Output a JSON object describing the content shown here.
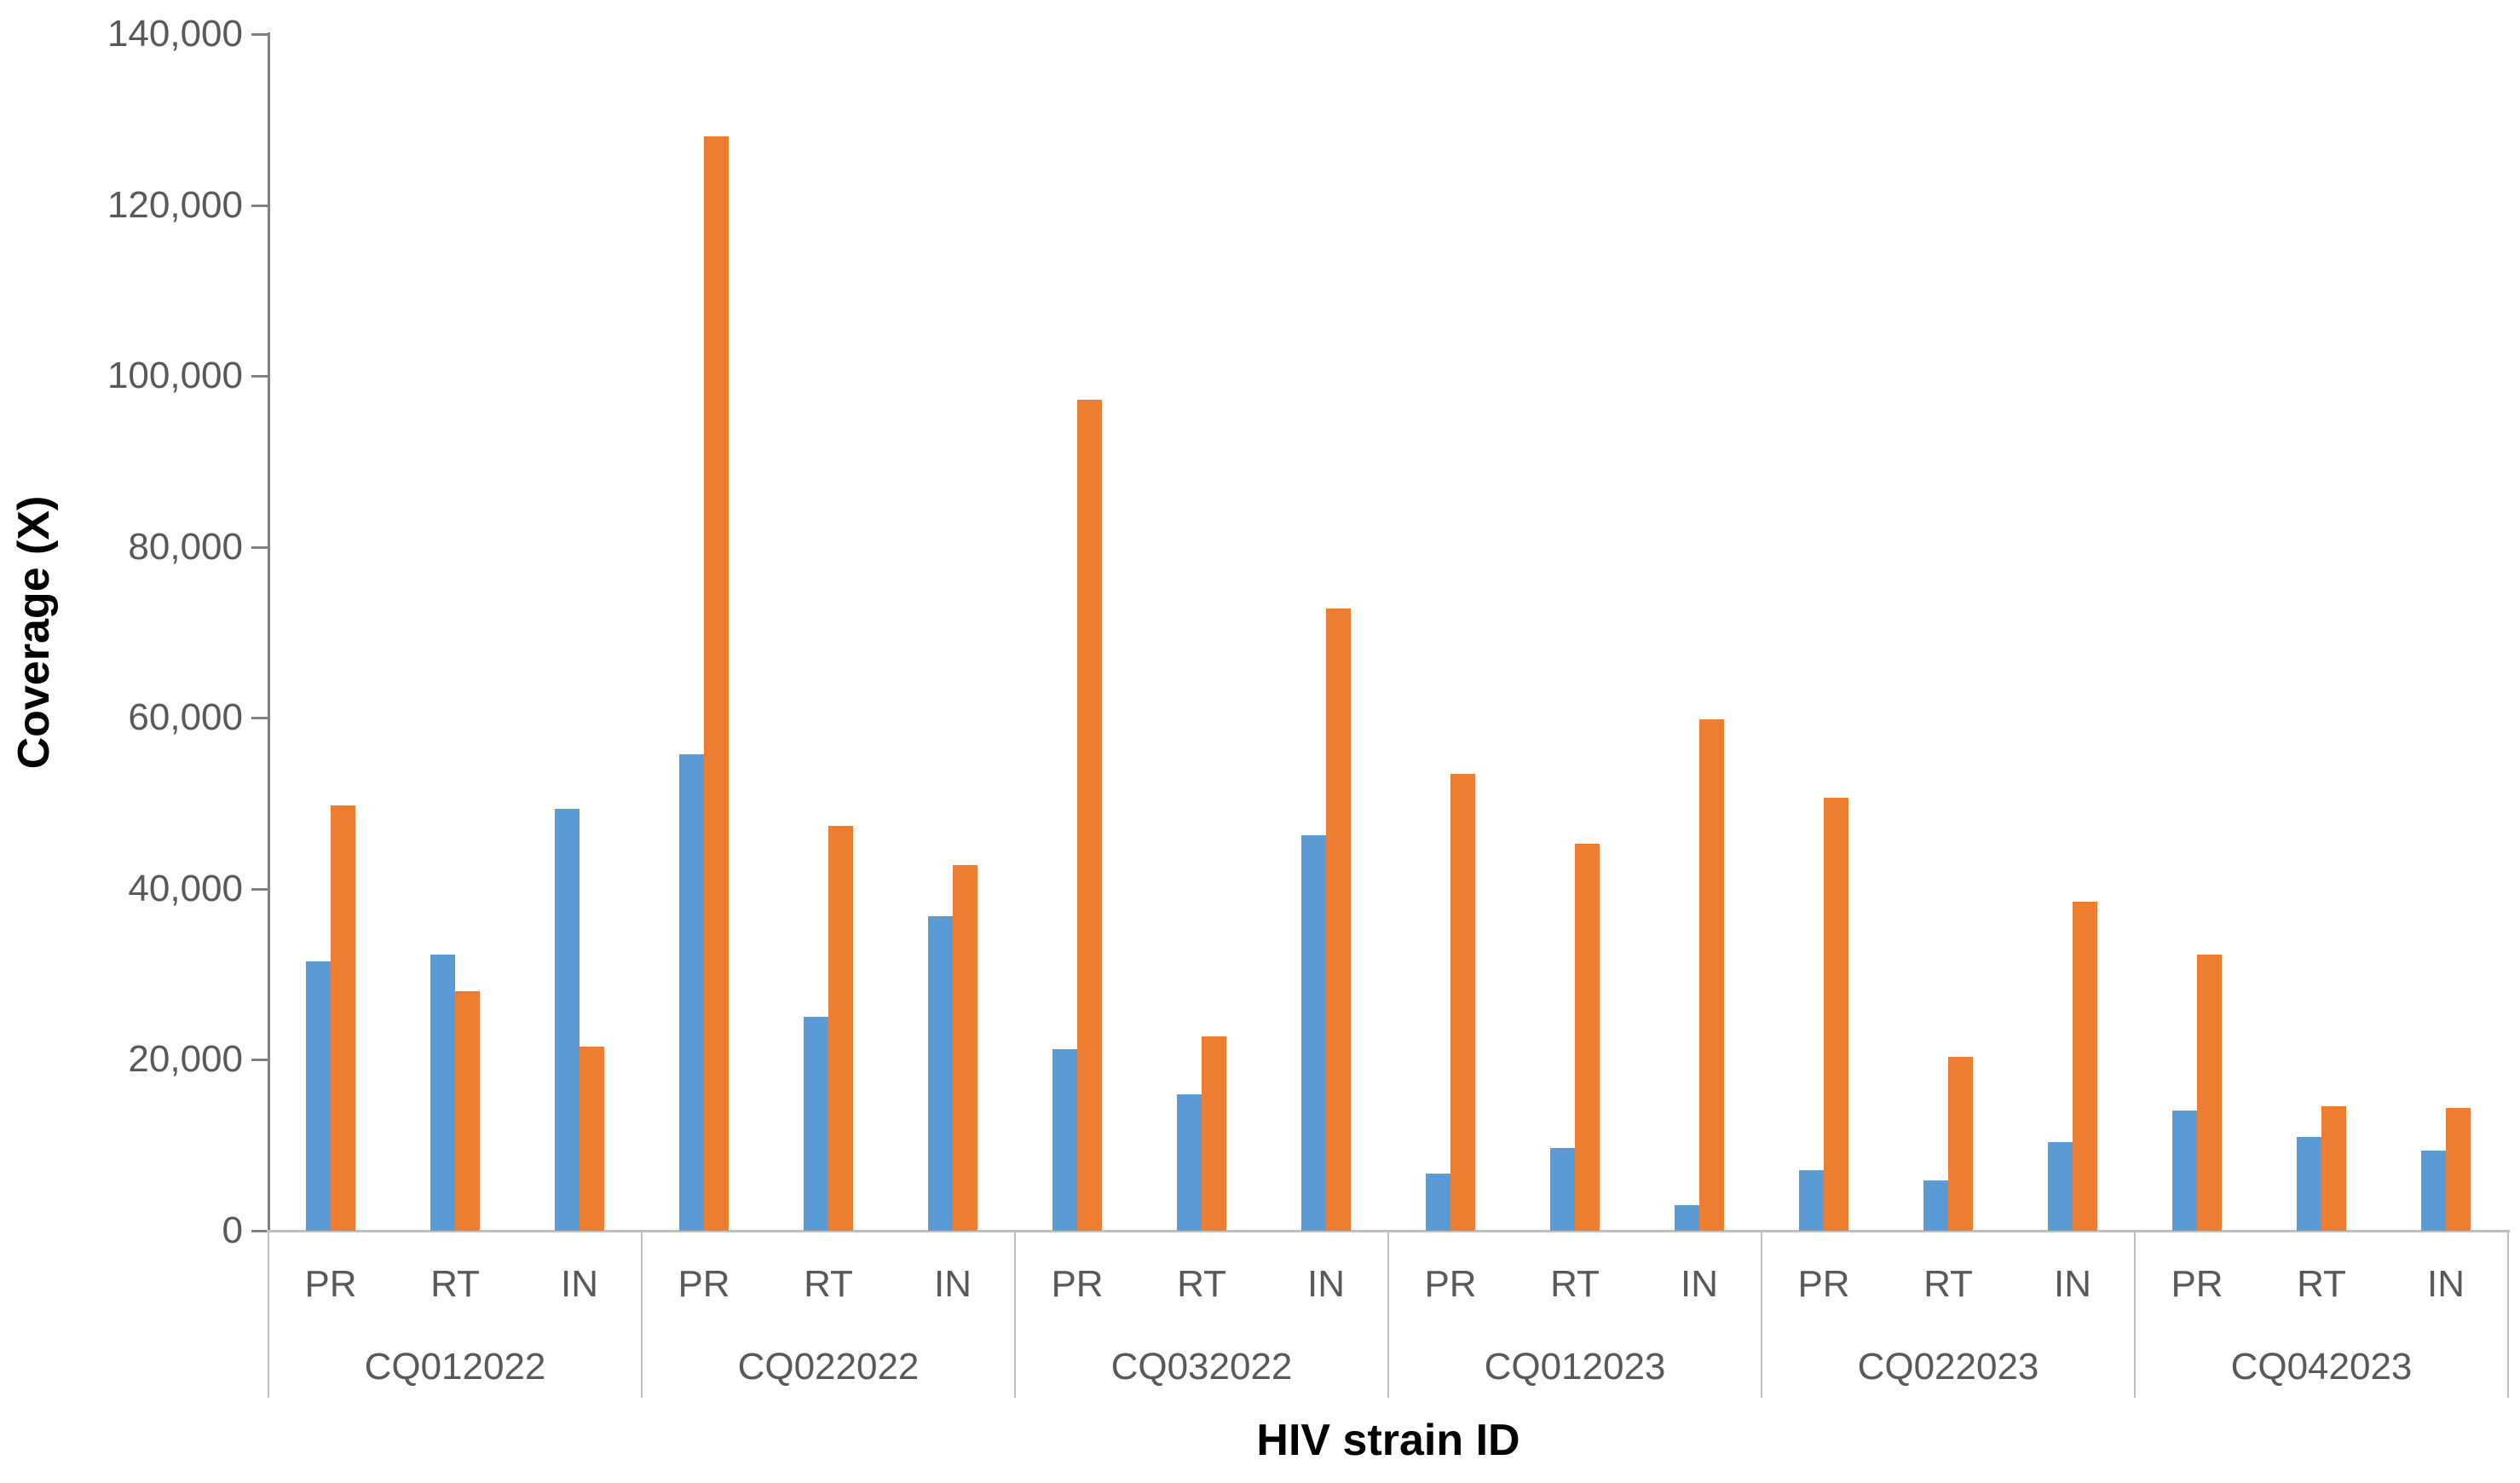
{
  "chart_data": {
    "type": "bar",
    "title": "",
    "xlabel": "HIV strain ID",
    "ylabel": "Coverage (X)",
    "ylim": [
      0,
      140000
    ],
    "ytick_interval": 20000,
    "ytick_labels": [
      "0",
      "20,000",
      "40,000",
      "60,000",
      "80,000",
      "100,000",
      "120,000",
      "140,000"
    ],
    "grid": false,
    "legend_position": "none",
    "subcategories": [
      "PR",
      "RT",
      "IN"
    ],
    "series": [
      {
        "color": "#5B9BD5"
      },
      {
        "color": "#ED7D31"
      }
    ],
    "groups": [
      {
        "label": "CQ012022",
        "values": [
          [
            31500,
            49800
          ],
          [
            32300,
            28000
          ],
          [
            49400,
            21500
          ]
        ]
      },
      {
        "label": "CQ022022",
        "values": [
          [
            55700,
            128000
          ],
          [
            25000,
            47400
          ],
          [
            36800,
            42800
          ]
        ]
      },
      {
        "label": "CQ032022",
        "values": [
          [
            21200,
            97200
          ],
          [
            16000,
            22700
          ],
          [
            46300,
            72800
          ]
        ]
      },
      {
        "label": "CQ012023",
        "values": [
          [
            6700,
            53400
          ],
          [
            9700,
            45300
          ],
          [
            3000,
            59800
          ]
        ]
      },
      {
        "label": "CQ022023",
        "values": [
          [
            7100,
            50700
          ],
          [
            5900,
            20300
          ],
          [
            10400,
            38500
          ]
        ]
      },
      {
        "label": "CQ042023",
        "values": [
          [
            14100,
            32300
          ],
          [
            11000,
            14600
          ],
          [
            9400,
            14400
          ]
        ]
      }
    ]
  },
  "colors": {
    "background": "#FFFFFF",
    "axis_line": "#808080",
    "baseline": "#BFBFBF",
    "divider": "#BFBFBF",
    "tick_text": "#595959",
    "title_text": "#000000"
  }
}
